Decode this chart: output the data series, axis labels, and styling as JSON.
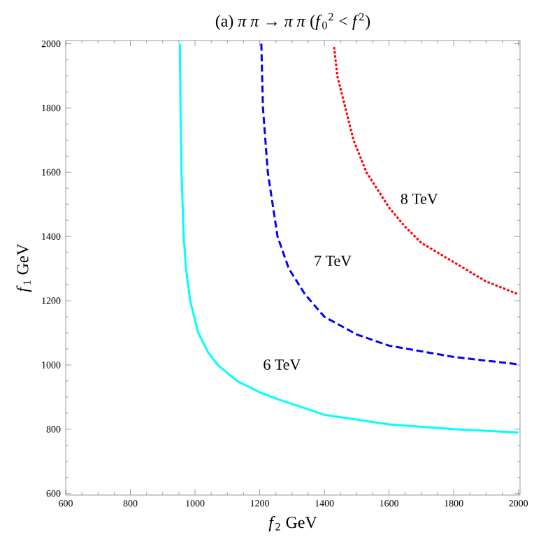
{
  "chart_data": {
    "type": "line",
    "title": "(a)  *π π* → *π π*  (*f*$_{0}$$^{2}$ < *f*$^{2}$)",
    "xlabel": "*f*$_{2}$ GeV",
    "ylabel": "*f*$_{1}$ GeV",
    "xlim": [
      600,
      2005
    ],
    "ylim": [
      595,
      2010
    ],
    "xticks": [
      600,
      800,
      1000,
      1200,
      1400,
      1600,
      1800,
      2000
    ],
    "yticks": [
      600,
      800,
      1000,
      1200,
      1400,
      1600,
      1800,
      2000
    ],
    "grid": false,
    "marker": "none",
    "series": [
      {
        "name": "6 TeV",
        "color": "#00ffff",
        "line_style": "solid",
        "x": [
          953,
          955,
          958,
          965,
          972,
          985,
          1010,
          1040,
          1070,
          1130,
          1200,
          1260,
          1400,
          1600,
          1800,
          2000
        ],
        "values": [
          2000,
          1800,
          1600,
          1400,
          1300,
          1200,
          1100,
          1040,
          1000,
          950,
          915,
          892,
          845,
          815,
          800,
          790
        ]
      },
      {
        "name": "7 TeV",
        "color": "#0000ff",
        "line_style": "dashed",
        "x": [
          1205,
          1210,
          1225,
          1255,
          1290,
          1340,
          1400,
          1500,
          1600,
          1800,
          2000
        ],
        "values": [
          2000,
          1800,
          1600,
          1400,
          1300,
          1220,
          1150,
          1095,
          1060,
          1025,
          1002
        ]
      },
      {
        "name": "8 TeV",
        "color": "#ff0000",
        "line_style": "dotted",
        "x": [
          1430,
          1440,
          1465,
          1490,
          1530,
          1600,
          1650,
          1700,
          1800,
          1900,
          2000
        ],
        "values": [
          1990,
          1900,
          1800,
          1700,
          1600,
          1490,
          1430,
          1380,
          1320,
          1260,
          1220
        ]
      }
    ]
  }
}
